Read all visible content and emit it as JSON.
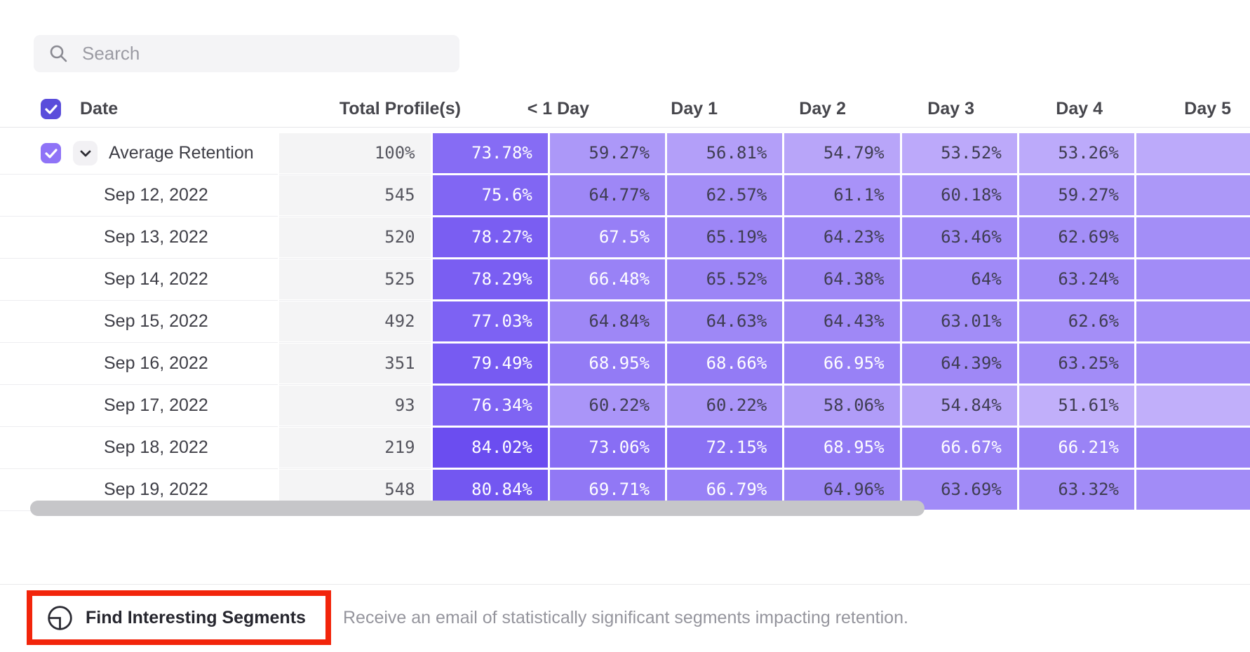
{
  "search": {
    "placeholder": "Search"
  },
  "table": {
    "columns": [
      "Date",
      "Total Profile(s)",
      "< 1 Day",
      "Day 1",
      "Day 2",
      "Day 3",
      "Day 4",
      "Day 5"
    ],
    "rows": [
      {
        "label": "Average Retention",
        "expandable": true,
        "total": "100%",
        "values": [
          "73.78%",
          "59.27%",
          "56.81%",
          "54.79%",
          "53.52%",
          "53.26%"
        ]
      },
      {
        "label": "Sep 12, 2022",
        "expandable": false,
        "total": "545",
        "values": [
          "75.6%",
          "64.77%",
          "62.57%",
          "61.1%",
          "60.18%",
          "59.27%"
        ]
      },
      {
        "label": "Sep 13, 2022",
        "expandable": false,
        "total": "520",
        "values": [
          "78.27%",
          "67.5%",
          "65.19%",
          "64.23%",
          "63.46%",
          "62.69%"
        ]
      },
      {
        "label": "Sep 14, 2022",
        "expandable": false,
        "total": "525",
        "values": [
          "78.29%",
          "66.48%",
          "65.52%",
          "64.38%",
          "64%",
          "63.24%"
        ]
      },
      {
        "label": "Sep 15, 2022",
        "expandable": false,
        "total": "492",
        "values": [
          "77.03%",
          "64.84%",
          "64.63%",
          "64.43%",
          "63.01%",
          "62.6%"
        ]
      },
      {
        "label": "Sep 16, 2022",
        "expandable": false,
        "total": "351",
        "values": [
          "79.49%",
          "68.95%",
          "68.66%",
          "66.95%",
          "64.39%",
          "63.25%"
        ]
      },
      {
        "label": "Sep 17, 2022",
        "expandable": false,
        "total": "93",
        "values": [
          "76.34%",
          "60.22%",
          "60.22%",
          "58.06%",
          "54.84%",
          "51.61%"
        ]
      },
      {
        "label": "Sep 18, 2022",
        "expandable": false,
        "total": "219",
        "values": [
          "84.02%",
          "73.06%",
          "72.15%",
          "68.95%",
          "66.67%",
          "66.21%"
        ]
      },
      {
        "label": "Sep 19, 2022",
        "expandable": false,
        "total": "548",
        "values": [
          "80.84%",
          "69.71%",
          "66.79%",
          "64.96%",
          "63.69%",
          "63.32%"
        ]
      }
    ]
  },
  "footer": {
    "button_label": "Find Interesting Segments",
    "description": "Receive an email of statistically significant segments impacting retention."
  },
  "colors": {
    "checkbox_header": "#5a4ddb",
    "checkbox_row": "#8f73f7",
    "heat_low": "#c5b4fb",
    "heat_high": "#684af0",
    "heat_low_value": 50,
    "heat_high_value": 85,
    "white_text_threshold": 66,
    "cell_dark_text": "#3f3d52",
    "cell_light_text": "#ffffff",
    "annotation_red": "#f2250b"
  }
}
